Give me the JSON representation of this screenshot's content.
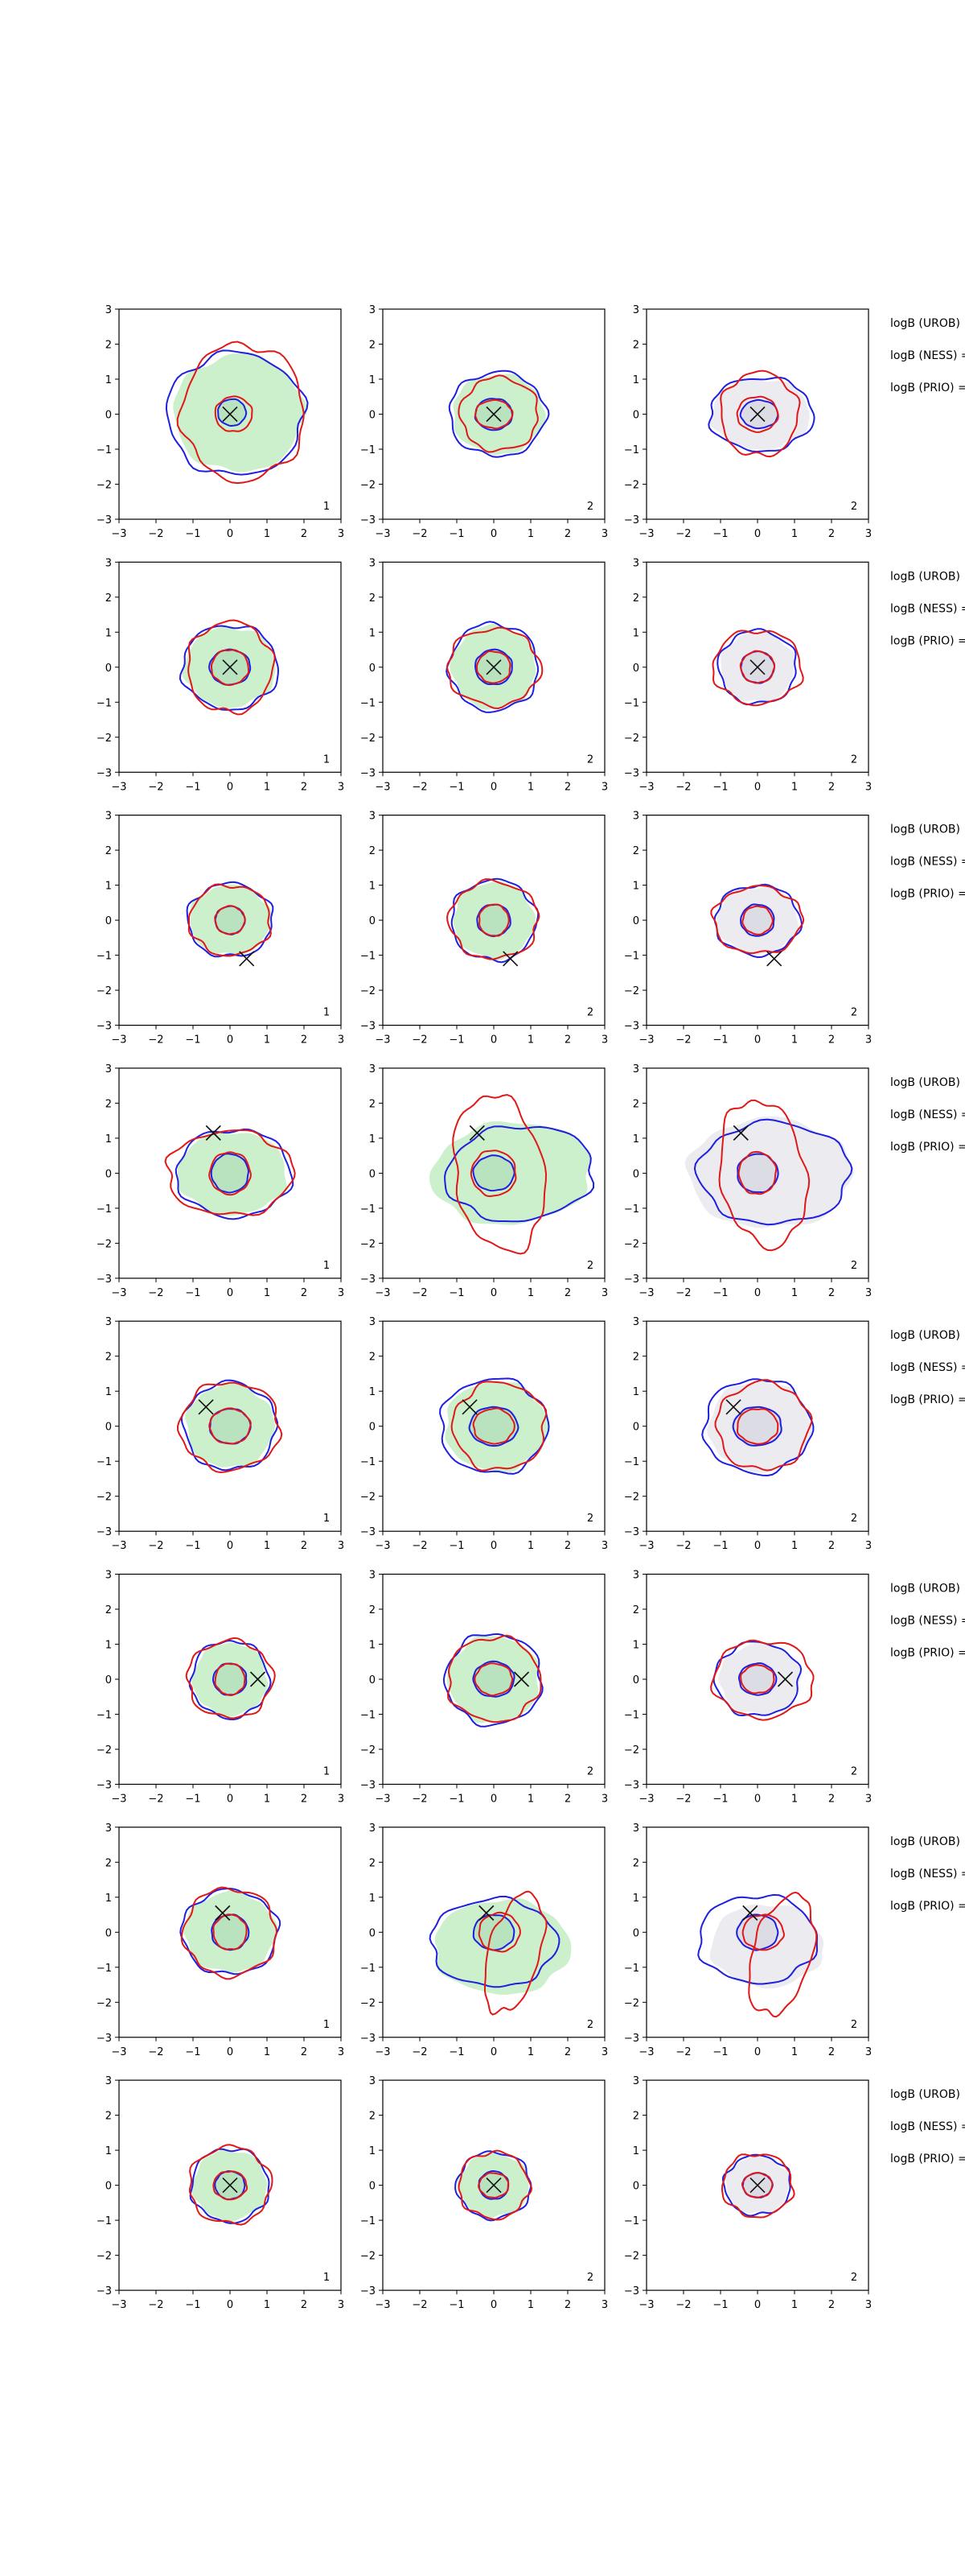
{
  "chart_data": {
    "type": "contour",
    "layout": {
      "rows": 8,
      "columns": 3
    },
    "xlim": [
      -3,
      3
    ],
    "ylim": [
      -3,
      3
    ],
    "xticks": [
      -3,
      -2,
      -1,
      0,
      1,
      2,
      3
    ],
    "yticks": [
      -3,
      -2,
      -1,
      0,
      1,
      2,
      3
    ],
    "grid": false,
    "colors": {
      "blue": "#1f1fe0",
      "red": "#e01818",
      "green_fill": "#ccefcc",
      "gray_fill": "#ebebf0",
      "marker": "#111111"
    },
    "panel_labels": [
      "1",
      "2",
      "2"
    ],
    "side_text": [
      "logB (UROB)",
      "logB (NESS) =",
      "logB (PRIO) ="
    ],
    "rows": [
      {
        "marker": [
          0,
          0
        ],
        "panels": [
          {
            "fill": "green",
            "blue": [
              [
                0.15,
                0.0,
                0.0,
                1.85,
                1.75
              ],
              [
                0.05,
                0.05,
                0.0,
                0.38,
                0.38
              ]
            ],
            "red": [
              [
                0.35,
                0.05,
                0.0,
                1.65,
                1.95
              ],
              [
                0.1,
                0.0,
                0.0,
                0.5,
                0.5
              ]
            ]
          },
          {
            "fill": "green",
            "blue": [
              [
                0.1,
                0.0,
                0.0,
                1.3,
                1.2
              ],
              [
                0.0,
                0.0,
                0.0,
                0.5,
                0.45
              ]
            ],
            "red": [
              [
                0.15,
                0.0,
                0.0,
                1.05,
                1.05
              ],
              [
                0.0,
                0.0,
                0.0,
                0.5,
                0.4
              ]
            ]
          },
          {
            "fill": "gray",
            "blue": [
              [
                0.1,
                0.0,
                0.0,
                1.4,
                1.05
              ],
              [
                0.05,
                0.0,
                0.0,
                0.5,
                0.4
              ]
            ],
            "red": [
              [
                0.05,
                0.0,
                0.0,
                1.05,
                1.2
              ],
              [
                0.0,
                0.0,
                0.0,
                0.55,
                0.5
              ]
            ]
          }
        ]
      },
      {
        "marker": [
          0,
          0
        ],
        "panels": [
          {
            "fill": "green",
            "blue": [
              [
                0.0,
                0.0,
                0.0,
                1.3,
                1.2
              ],
              [
                0.0,
                0.0,
                0.0,
                0.55,
                0.5
              ]
            ],
            "red": [
              [
                0.0,
                0.0,
                0.0,
                1.15,
                1.3
              ],
              [
                0.0,
                0.0,
                0.0,
                0.5,
                0.5
              ]
            ]
          },
          {
            "fill": "green",
            "blue": [
              [
                0.0,
                0.0,
                0.0,
                1.2,
                1.25
              ],
              [
                0.0,
                0.0,
                0.0,
                0.5,
                0.5
              ]
            ],
            "red": [
              [
                0.0,
                0.0,
                0.0,
                1.25,
                1.1
              ],
              [
                0.0,
                0.0,
                0.0,
                0.45,
                0.45
              ]
            ]
          },
          {
            "fill": "gray",
            "blue": [
              [
                0.0,
                0.0,
                0.0,
                1.05,
                1.05
              ],
              [
                0.0,
                0.0,
                0.0,
                0.45,
                0.45
              ]
            ],
            "red": [
              [
                0.0,
                0.0,
                0.0,
                1.2,
                1.05
              ],
              [
                0.0,
                0.0,
                0.0,
                0.45,
                0.45
              ]
            ]
          }
        ]
      },
      {
        "marker": [
          0.45,
          -1.1
        ],
        "panels": [
          {
            "fill": "green",
            "blue": [
              [
                0.0,
                0.0,
                0.0,
                1.15,
                1.05
              ],
              [
                0.0,
                0.0,
                0.0,
                0.4,
                0.4
              ]
            ],
            "red": [
              [
                0.0,
                0.0,
                0.0,
                1.1,
                1.0
              ],
              [
                0.0,
                0.0,
                0.0,
                0.4,
                0.4
              ]
            ]
          },
          {
            "fill": "green",
            "blue": [
              [
                0.0,
                0.0,
                0.0,
                1.15,
                1.15
              ],
              [
                0.0,
                0.0,
                0.0,
                0.45,
                0.45
              ]
            ],
            "red": [
              [
                0.0,
                0.0,
                0.0,
                1.2,
                1.1
              ],
              [
                0.0,
                0.0,
                0.0,
                0.4,
                0.45
              ]
            ]
          },
          {
            "fill": "gray",
            "blue": [
              [
                0.0,
                0.0,
                0.0,
                1.15,
                1.0
              ],
              [
                0.0,
                0.0,
                0.0,
                0.45,
                0.45
              ]
            ],
            "red": [
              [
                0.0,
                0.0,
                0.0,
                1.2,
                0.95
              ],
              [
                0.0,
                0.0,
                0.0,
                0.4,
                0.4
              ]
            ]
          }
        ]
      },
      {
        "marker": [
          -0.45,
          1.15
        ],
        "panels": [
          {
            "fill": "green",
            "blue": [
              [
                0.1,
                0.0,
                0.0,
                1.55,
                1.25
              ],
              [
                0.0,
                0.0,
                0.0,
                0.5,
                0.55
              ]
            ],
            "red": [
              [
                0.0,
                0.0,
                0.0,
                1.7,
                1.2
              ],
              [
                0.0,
                0.0,
                0.0,
                0.55,
                0.6
              ]
            ]
          },
          {
            "fill": "green_big",
            "blue": [
              [
                0.7,
                0.0,
                0.1,
                2.0,
                1.35
              ],
              [
                0.0,
                0.0,
                0.0,
                0.55,
                0.5
              ]
            ],
            "red": [
              [
                0.15,
                0.0,
                0.15,
                1.2,
                2.25
              ],
              [
                0.0,
                0.0,
                0.0,
                0.6,
                0.65
              ]
            ]
          },
          {
            "fill": "gray_big",
            "blue": [
              [
                0.45,
                0.0,
                0.0,
                2.05,
                1.45
              ],
              [
                0.0,
                0.0,
                0.0,
                0.55,
                0.55
              ]
            ],
            "red": [
              [
                0.15,
                0.0,
                0.15,
                1.15,
                2.1
              ],
              [
                0.0,
                0.0,
                0.0,
                0.5,
                0.6
              ]
            ]
          }
        ]
      },
      {
        "marker": [
          -0.65,
          0.55
        ],
        "panels": [
          {
            "fill": "green",
            "blue": [
              [
                0.0,
                0.0,
                0.0,
                1.25,
                1.25
              ],
              [
                0.0,
                0.0,
                0.0,
                0.55,
                0.5
              ]
            ],
            "red": [
              [
                0.0,
                0.0,
                0.0,
                1.35,
                1.25
              ],
              [
                0.0,
                0.0,
                0.0,
                0.55,
                0.5
              ]
            ]
          },
          {
            "fill": "green",
            "blue": [
              [
                0.0,
                0.0,
                0.0,
                1.45,
                1.35
              ],
              [
                0.0,
                0.0,
                0.0,
                0.65,
                0.55
              ]
            ],
            "red": [
              [
                0.15,
                0.0,
                0.0,
                1.25,
                1.25
              ],
              [
                0.0,
                0.0,
                0.0,
                0.55,
                0.5
              ]
            ]
          },
          {
            "fill": "gray",
            "blue": [
              [
                0.0,
                0.0,
                0.0,
                1.45,
                1.35
              ],
              [
                0.0,
                0.0,
                0.0,
                0.65,
                0.55
              ]
            ],
            "red": [
              [
                0.15,
                0.0,
                0.0,
                1.25,
                1.25
              ],
              [
                0.0,
                0.0,
                0.0,
                0.55,
                0.5
              ]
            ]
          }
        ]
      },
      {
        "marker": [
          0.75,
          0.0
        ],
        "panels": [
          {
            "fill": "green",
            "blue": [
              [
                0.0,
                0.0,
                0.0,
                1.05,
                1.1
              ],
              [
                0.0,
                0.0,
                0.0,
                0.45,
                0.45
              ]
            ],
            "red": [
              [
                0.0,
                0.0,
                0.0,
                1.15,
                1.1
              ],
              [
                0.0,
                0.0,
                0.0,
                0.4,
                0.45
              ]
            ]
          },
          {
            "fill": "green",
            "blue": [
              [
                0.0,
                0.0,
                0.0,
                1.3,
                1.3
              ],
              [
                0.0,
                0.0,
                0.0,
                0.55,
                0.5
              ]
            ],
            "red": [
              [
                0.0,
                0.0,
                0.0,
                1.25,
                1.2
              ],
              [
                0.0,
                0.0,
                0.0,
                0.5,
                0.45
              ]
            ]
          },
          {
            "fill": "gray",
            "blue": [
              [
                0.0,
                0.0,
                0.0,
                1.15,
                1.05
              ],
              [
                0.0,
                0.0,
                0.0,
                0.5,
                0.45
              ]
            ],
            "red": [
              [
                0.15,
                0.0,
                0.0,
                1.35,
                1.1
              ],
              [
                0.0,
                0.0,
                0.0,
                0.45,
                0.4
              ]
            ]
          }
        ]
      },
      {
        "marker": [
          -0.2,
          0.55
        ],
        "panels": [
          {
            "fill": "green",
            "blue": [
              [
                0.0,
                0.0,
                0.0,
                1.3,
                1.2
              ],
              [
                0.0,
                0.0,
                0.0,
                0.5,
                0.5
              ]
            ],
            "red": [
              [
                0.0,
                0.0,
                0.0,
                1.25,
                1.25
              ],
              [
                0.0,
                0.0,
                0.0,
                0.45,
                0.5
              ]
            ]
          },
          {
            "fill": "green_big",
            "blue": [
              [
                0.0,
                -0.3,
                0.0,
                1.7,
                1.25
              ],
              [
                0.0,
                0.0,
                0.0,
                0.55,
                0.5
              ]
            ],
            "red": [
              [
                0.55,
                -0.6,
                -0.25,
                0.7,
                1.75
              ],
              [
                0.15,
                0.0,
                0.0,
                0.55,
                0.55
              ]
            ]
          },
          {
            "fill": "gray",
            "blue": [
              [
                0.0,
                -0.2,
                0.0,
                1.6,
                1.25
              ],
              [
                0.0,
                0.0,
                0.0,
                0.55,
                0.5
              ]
            ],
            "red": [
              [
                0.65,
                -0.65,
                -0.25,
                0.8,
                1.75
              ],
              [
                0.15,
                0.0,
                0.0,
                0.55,
                0.5
              ]
            ]
          }
        ]
      },
      {
        "marker": [
          0,
          0
        ],
        "panels": [
          {
            "fill": "green",
            "blue": [
              [
                0.0,
                0.0,
                0.0,
                1.05,
                1.05
              ],
              [
                0.0,
                0.0,
                0.0,
                0.4,
                0.4
              ]
            ],
            "red": [
              [
                0.0,
                0.0,
                0.0,
                1.1,
                1.1
              ],
              [
                0.0,
                0.0,
                0.0,
                0.45,
                0.4
              ]
            ]
          },
          {
            "fill": "green",
            "blue": [
              [
                0.0,
                0.0,
                0.0,
                1.0,
                0.95
              ],
              [
                0.0,
                0.0,
                0.0,
                0.4,
                0.4
              ]
            ],
            "red": [
              [
                0.0,
                0.0,
                0.0,
                0.95,
                0.95
              ],
              [
                0.0,
                0.0,
                0.0,
                0.4,
                0.35
              ]
            ]
          },
          {
            "fill": "gray",
            "blue": [
              [
                0.0,
                0.0,
                0.0,
                0.9,
                0.85
              ],
              [
                0.0,
                0.0,
                0.0,
                0.4,
                0.35
              ]
            ],
            "red": [
              [
                0.0,
                0.0,
                0.0,
                0.95,
                0.9
              ],
              [
                0.0,
                0.0,
                0.0,
                0.4,
                0.35
              ]
            ]
          }
        ]
      }
    ]
  }
}
